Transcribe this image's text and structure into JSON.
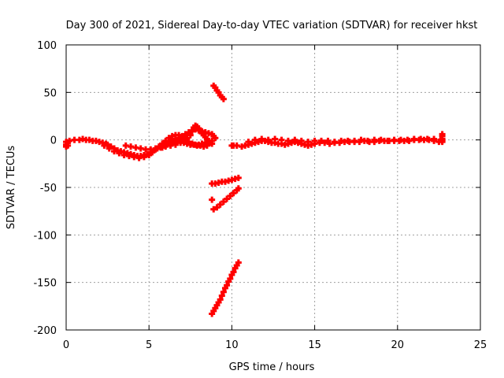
{
  "chart_data": {
    "type": "scatter",
    "title": "Day 300 of 2021, Sidereal Day-to-day VTEC variation (SDTVAR) for receiver hkst",
    "xlabel": "GPS time / hours",
    "ylabel": "SDTVAR / TECUs",
    "xlim": [
      0,
      25
    ],
    "ylim": [
      -200,
      100
    ],
    "xticks": [
      0,
      5,
      10,
      15,
      20,
      25
    ],
    "yticks": [
      100,
      50,
      0,
      -50,
      -100,
      -150,
      -200
    ],
    "grid": true,
    "legend": "none",
    "marker": "+",
    "color": "#ff0000",
    "series": [
      {
        "values": [
          [
            0.0,
            -2
          ],
          [
            0.0,
            -5
          ],
          [
            0.0,
            -7
          ],
          [
            0.1,
            -3
          ],
          [
            0.1,
            -6
          ],
          [
            0.2,
            -1
          ],
          [
            0.5,
            0
          ],
          [
            0.8,
            0
          ],
          [
            1.0,
            1
          ],
          [
            1.2,
            0
          ],
          [
            1.4,
            0
          ],
          [
            1.6,
            -1
          ],
          [
            1.8,
            -1
          ],
          [
            2.0,
            -2
          ],
          [
            2.2,
            -3
          ],
          [
            2.4,
            -4
          ],
          [
            2.5,
            -5
          ],
          [
            2.7,
            -7
          ],
          [
            2.9,
            -9
          ],
          [
            3.1,
            -11
          ],
          [
            3.3,
            -12
          ],
          [
            3.5,
            -13
          ],
          [
            3.7,
            -14
          ],
          [
            3.9,
            -15
          ],
          [
            4.1,
            -16
          ],
          [
            4.3,
            -17
          ],
          [
            4.5,
            -17
          ],
          [
            4.7,
            -16
          ],
          [
            4.9,
            -15
          ],
          [
            5.1,
            -13
          ],
          [
            5.3,
            -11
          ],
          [
            5.5,
            -9
          ],
          [
            5.7,
            -7
          ],
          [
            5.9,
            -5
          ],
          [
            6.1,
            -3
          ],
          [
            6.3,
            -2
          ],
          [
            6.5,
            -1
          ],
          [
            6.7,
            -1
          ],
          [
            6.9,
            -2
          ],
          [
            7.1,
            -3
          ],
          [
            7.3,
            -4
          ],
          [
            7.5,
            -5
          ],
          [
            7.7,
            -5
          ],
          [
            7.9,
            -6
          ],
          [
            8.1,
            -6
          ],
          [
            8.3,
            -7
          ],
          [
            8.5,
            -6
          ]
        ]
      },
      {
        "values": [
          [
            2.3,
            -6
          ],
          [
            2.6,
            -9
          ],
          [
            2.9,
            -12
          ],
          [
            3.2,
            -14
          ],
          [
            3.5,
            -16
          ],
          [
            3.8,
            -17
          ],
          [
            4.1,
            -18
          ],
          [
            4.4,
            -19
          ],
          [
            4.7,
            -18
          ],
          [
            5.0,
            -16
          ],
          [
            5.2,
            -13
          ],
          [
            5.4,
            -10
          ],
          [
            5.6,
            -7
          ],
          [
            5.8,
            -4
          ],
          [
            6.0,
            -1
          ],
          [
            6.2,
            2
          ],
          [
            6.4,
            4
          ],
          [
            6.6,
            5
          ],
          [
            6.8,
            5
          ],
          [
            7.0,
            3
          ],
          [
            7.2,
            0
          ],
          [
            7.4,
            -2
          ],
          [
            7.6,
            -4
          ],
          [
            7.8,
            -5
          ],
          [
            8.0,
            -5
          ],
          [
            8.2,
            -4
          ],
          [
            8.4,
            -3
          ],
          [
            8.6,
            -2
          ],
          [
            8.8,
            -1
          ]
        ]
      },
      {
        "values": [
          [
            3.6,
            -6
          ],
          [
            3.9,
            -7
          ],
          [
            4.2,
            -8
          ],
          [
            4.5,
            -9
          ],
          [
            4.8,
            -10
          ],
          [
            5.1,
            -10
          ],
          [
            5.4,
            -9
          ],
          [
            5.7,
            -8
          ],
          [
            6.0,
            -7
          ],
          [
            6.3,
            -6
          ],
          [
            6.6,
            -5
          ],
          [
            6.9,
            -3
          ],
          [
            7.1,
            -1
          ],
          [
            7.3,
            2
          ],
          [
            7.5,
            5
          ],
          [
            7.6,
            9
          ],
          [
            7.7,
            13
          ],
          [
            7.8,
            15
          ],
          [
            7.9,
            14
          ],
          [
            8.0,
            12
          ],
          [
            8.1,
            10
          ],
          [
            8.2,
            7
          ],
          [
            8.3,
            5
          ],
          [
            8.4,
            3
          ],
          [
            8.5,
            1
          ],
          [
            8.6,
            -1
          ],
          [
            8.7,
            -3
          ],
          [
            8.8,
            -4
          ]
        ]
      },
      {
        "values": [
          [
            5.8,
            -8
          ],
          [
            6.0,
            -6
          ],
          [
            6.2,
            -4
          ],
          [
            6.4,
            -2
          ],
          [
            6.6,
            0
          ],
          [
            6.8,
            2
          ],
          [
            7.0,
            4
          ],
          [
            7.2,
            6
          ],
          [
            7.4,
            8
          ],
          [
            7.6,
            10
          ],
          [
            7.8,
            11
          ],
          [
            8.0,
            10
          ],
          [
            8.2,
            9
          ],
          [
            8.4,
            8
          ],
          [
            8.6,
            7
          ],
          [
            8.8,
            6
          ],
          [
            8.9,
            4
          ],
          [
            9.0,
            2
          ]
        ]
      },
      {
        "values": [
          [
            8.9,
            57
          ],
          [
            9.0,
            55
          ],
          [
            9.1,
            52
          ],
          [
            9.2,
            50
          ],
          [
            9.3,
            47
          ],
          [
            9.4,
            45
          ],
          [
            9.5,
            43
          ]
        ]
      },
      {
        "values": [
          [
            8.8,
            -46
          ],
          [
            9.0,
            -46
          ],
          [
            9.2,
            -45
          ],
          [
            9.4,
            -44
          ],
          [
            9.6,
            -44
          ],
          [
            9.8,
            -43
          ],
          [
            10.0,
            -42
          ],
          [
            10.2,
            -41
          ],
          [
            10.4,
            -40
          ],
          [
            8.8,
            -63
          ]
        ]
      },
      {
        "values": [
          [
            8.9,
            -73
          ],
          [
            9.1,
            -71
          ],
          [
            9.3,
            -68
          ],
          [
            9.5,
            -65
          ],
          [
            9.7,
            -62
          ],
          [
            9.9,
            -59
          ],
          [
            10.1,
            -56
          ],
          [
            10.3,
            -53
          ],
          [
            10.4,
            -51
          ]
        ]
      },
      {
        "values": [
          [
            8.8,
            -183
          ],
          [
            8.9,
            -180
          ],
          [
            9.0,
            -177
          ],
          [
            9.1,
            -174
          ],
          [
            9.2,
            -171
          ],
          [
            9.3,
            -168
          ],
          [
            9.4,
            -164
          ],
          [
            9.5,
            -160
          ],
          [
            9.6,
            -156
          ],
          [
            9.7,
            -153
          ],
          [
            9.8,
            -149
          ],
          [
            9.9,
            -146
          ],
          [
            10.0,
            -142
          ],
          [
            10.1,
            -139
          ],
          [
            10.2,
            -135
          ],
          [
            10.3,
            -132
          ],
          [
            10.4,
            -129
          ]
        ]
      },
      {
        "values": [
          [
            10.0,
            -6
          ],
          [
            10.1,
            -6
          ],
          [
            10.3,
            -6
          ],
          [
            10.6,
            -7
          ],
          [
            10.8,
            -6
          ],
          [
            11.0,
            -5
          ],
          [
            11.2,
            -4
          ],
          [
            11.4,
            -3
          ],
          [
            11.6,
            -2
          ],
          [
            11.8,
            -1
          ],
          [
            12.0,
            -1
          ],
          [
            12.2,
            -2
          ],
          [
            12.4,
            -3
          ],
          [
            12.6,
            -3
          ],
          [
            12.8,
            -4
          ],
          [
            13.0,
            -4
          ],
          [
            13.2,
            -5
          ],
          [
            13.4,
            -4
          ],
          [
            13.6,
            -3
          ],
          [
            13.8,
            -2
          ],
          [
            14.0,
            -3
          ],
          [
            14.2,
            -4
          ],
          [
            14.4,
            -5
          ],
          [
            14.6,
            -6
          ],
          [
            14.8,
            -5
          ],
          [
            15.0,
            -4
          ],
          [
            15.3,
            -3
          ],
          [
            15.6,
            -3
          ],
          [
            15.9,
            -4
          ],
          [
            16.2,
            -3
          ],
          [
            16.5,
            -3
          ],
          [
            16.8,
            -2
          ],
          [
            17.1,
            -2
          ],
          [
            17.4,
            -2
          ],
          [
            17.7,
            -2
          ],
          [
            18.0,
            -1
          ],
          [
            18.3,
            -2
          ],
          [
            18.6,
            -2
          ],
          [
            18.9,
            -1
          ],
          [
            19.2,
            -1
          ],
          [
            19.5,
            -1
          ],
          [
            19.8,
            -1
          ],
          [
            20.1,
            -1
          ],
          [
            20.4,
            -1
          ],
          [
            20.7,
            -1
          ],
          [
            21.0,
            0
          ],
          [
            21.3,
            0
          ],
          [
            21.6,
            0
          ],
          [
            21.9,
            0
          ],
          [
            22.2,
            -1
          ],
          [
            22.5,
            -2
          ],
          [
            22.7,
            -2
          ],
          [
            22.7,
            1
          ],
          [
            22.7,
            4
          ],
          [
            22.7,
            6
          ],
          [
            22.7,
            -1
          ]
        ]
      },
      {
        "values": [
          [
            11.0,
            -2
          ],
          [
            11.4,
            0
          ],
          [
            11.8,
            1
          ],
          [
            12.2,
            0
          ],
          [
            12.6,
            1
          ],
          [
            13.0,
            0
          ],
          [
            13.4,
            -1
          ],
          [
            13.8,
            0
          ],
          [
            14.2,
            -1
          ],
          [
            14.6,
            -2
          ],
          [
            15.0,
            -1
          ],
          [
            15.4,
            -1
          ],
          [
            15.8,
            -1
          ],
          [
            16.2,
            -2
          ],
          [
            16.6,
            -1
          ],
          [
            17.0,
            -1
          ],
          [
            17.4,
            -1
          ],
          [
            17.8,
            0
          ],
          [
            18.2,
            -1
          ],
          [
            18.6,
            0
          ],
          [
            19.0,
            0
          ],
          [
            19.4,
            -1
          ],
          [
            19.8,
            0
          ],
          [
            20.2,
            0
          ],
          [
            20.6,
            0
          ],
          [
            21.0,
            1
          ],
          [
            21.4,
            1
          ],
          [
            21.8,
            1
          ],
          [
            22.2,
            1
          ],
          [
            22.6,
            0
          ]
        ]
      }
    ]
  }
}
